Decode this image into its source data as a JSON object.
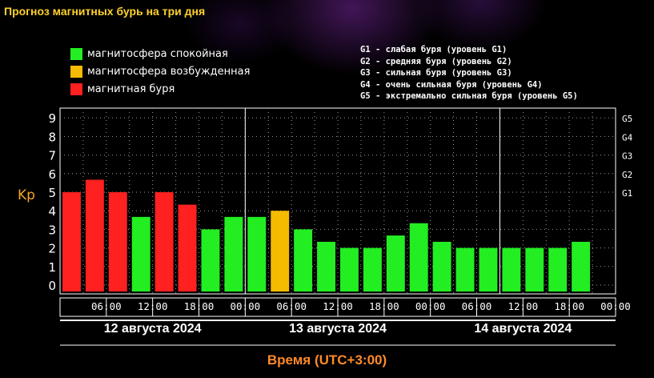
{
  "title": "Прогноз магнитных бурь на три дня",
  "legend": [
    {
      "label": "магнитосфера спокойная",
      "color": "#22ee22"
    },
    {
      "label": "магнитосфера возбужденная",
      "color": "#f5bb00"
    },
    {
      "label": "магнитная буря",
      "color": "#ff2020"
    }
  ],
  "g_levels": [
    "G1 - слабая буря (уровень G1)",
    "G2 - средняя буря (уровень G2)",
    "G3 - сильная буря (уровень G3)",
    "G4 - очень сильная буря (уровень G4)",
    "G5 - экстремально сильная буря (уровень G5)"
  ],
  "chart_data": {
    "type": "bar",
    "ylabel": "Kp",
    "xlabel": "Время (UTC+3:00)",
    "ylim": [
      0,
      9
    ],
    "yticks": [
      "0",
      "1",
      "2",
      "3",
      "4",
      "5",
      "6",
      "7",
      "8",
      "9"
    ],
    "g_ticks": [
      {
        "label": "G1",
        "kp": 5
      },
      {
        "label": "G2",
        "kp": 6
      },
      {
        "label": "G3",
        "kp": 7
      },
      {
        "label": "G4",
        "kp": 8
      },
      {
        "label": "G5",
        "kp": 9
      }
    ],
    "x_ticks": [
      "06:00",
      "12:00",
      "18:00",
      "00:00",
      "06:00",
      "12:00",
      "18:00",
      "00:00",
      "06:00",
      "12:00",
      "18:00",
      "00:00"
    ],
    "days": [
      "12 августа 2024",
      "13 августа 2024",
      "14 августа 2024"
    ],
    "values": [
      5,
      5.67,
      5,
      3.67,
      5,
      4.33,
      3,
      3.67,
      3.67,
      4,
      3,
      2.33,
      2,
      2,
      2.67,
      3.33,
      2.33,
      2,
      2,
      2,
      2,
      2,
      2.33
    ],
    "colors": [
      "#ff2020",
      "#ff2020",
      "#ff2020",
      "#22ee22",
      "#ff2020",
      "#ff2020",
      "#22ee22",
      "#22ee22",
      "#22ee22",
      "#f5bb00",
      "#22ee22",
      "#22ee22",
      "#22ee22",
      "#22ee22",
      "#22ee22",
      "#22ee22",
      "#22ee22",
      "#22ee22",
      "#22ee22",
      "#22ee22",
      "#22ee22",
      "#22ee22",
      "#22ee22"
    ],
    "grid": true
  }
}
